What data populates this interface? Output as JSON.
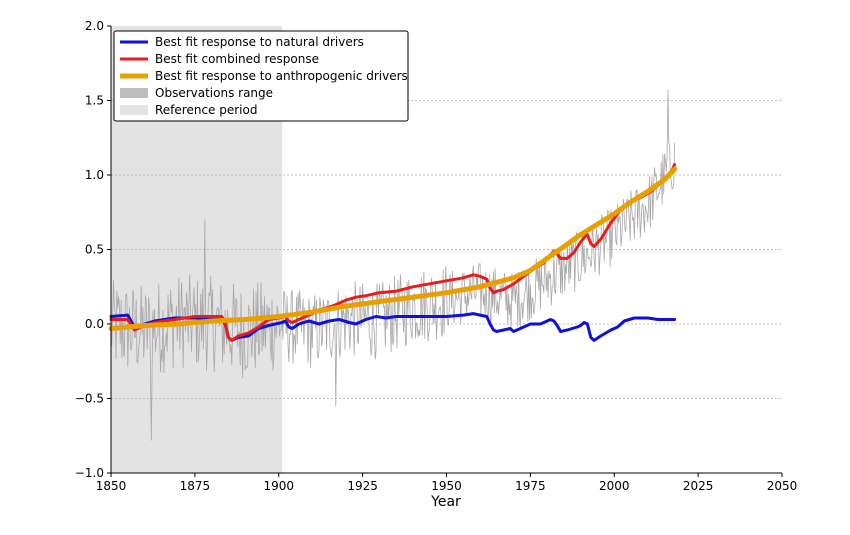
{
  "chart_data": {
    "type": "line",
    "title": "",
    "xlabel": "Year",
    "ylabel": "",
    "xlim": [
      1850,
      2050
    ],
    "ylim": [
      -1.0,
      2.0
    ],
    "x_ticks": [
      "1850",
      "1875",
      "1900",
      "1925",
      "1950",
      "1975",
      "2000",
      "2025",
      "2050"
    ],
    "y_ticks": [
      "2.0",
      "1.5",
      "1.0",
      "0.5",
      "0.0",
      "−0.5",
      "−1.0"
    ],
    "grid": "horizontal dotted",
    "legend_position": "top-left",
    "legend": [
      {
        "label": "Best fit response to natural drivers",
        "color": "#1010d8",
        "kind": "line"
      },
      {
        "label": "Best fit combined response",
        "color": "#e81c1c",
        "kind": "line"
      },
      {
        "label": "Best fit response to anthropogenic drivers",
        "color": "#e8a000",
        "kind": "line"
      },
      {
        "label": "Observations range",
        "color": "#bdbdbd",
        "kind": "patch"
      },
      {
        "label": "Reference period",
        "color": "#e3e3e3",
        "kind": "patch"
      }
    ],
    "reference_period": [
      1850,
      1901
    ],
    "series": [
      {
        "name": "Best fit response to natural drivers",
        "color": "#1010d8",
        "x": [
          1850,
          1855,
          1856,
          1857,
          1858,
          1860,
          1863,
          1866,
          1869,
          1872,
          1875,
          1878,
          1881,
          1883,
          1884,
          1885,
          1886,
          1888,
          1891,
          1894,
          1897,
          1899,
          1901,
          1902,
          1903,
          1904,
          1906,
          1909,
          1912,
          1915,
          1918,
          1921,
          1923,
          1926,
          1929,
          1932,
          1935,
          1940,
          1945,
          1950,
          1955,
          1958,
          1960,
          1962,
          1963,
          1964,
          1965,
          1967,
          1969,
          1970,
          1972,
          1975,
          1978,
          1981,
          1982,
          1983,
          1984,
          1986,
          1989,
          1990,
          1991,
          1992,
          1993,
          1994,
          1996,
          1999,
          2001,
          2003,
          2006,
          2008,
          2010,
          2013,
          2016,
          2018
        ],
        "values": [
          0.05,
          0.06,
          0.02,
          -0.02,
          -0.03,
          0.0,
          0.02,
          0.03,
          0.04,
          0.04,
          0.04,
          0.04,
          0.04,
          0.03,
          0.0,
          -0.09,
          -0.11,
          -0.09,
          -0.08,
          -0.03,
          -0.01,
          0.0,
          0.01,
          0.02,
          -0.02,
          -0.03,
          0.0,
          0.02,
          0.0,
          0.02,
          0.03,
          0.01,
          0.0,
          0.03,
          0.05,
          0.04,
          0.05,
          0.05,
          0.05,
          0.05,
          0.06,
          0.07,
          0.06,
          0.05,
          0.0,
          -0.04,
          -0.05,
          -0.04,
          -0.03,
          -0.05,
          -0.03,
          0.0,
          0.0,
          0.03,
          0.02,
          -0.01,
          -0.05,
          -0.04,
          -0.02,
          -0.01,
          0.01,
          0.0,
          -0.09,
          -0.11,
          -0.08,
          -0.04,
          -0.02,
          0.02,
          0.04,
          0.04,
          0.04,
          0.03,
          0.03,
          0.03
        ]
      },
      {
        "name": "Best fit combined response",
        "color": "#e81c1c",
        "x": [
          1850,
          1855,
          1857,
          1858,
          1860,
          1863,
          1866,
          1869,
          1872,
          1875,
          1878,
          1881,
          1883,
          1884,
          1885,
          1886,
          1888,
          1891,
          1894,
          1897,
          1900,
          1902,
          1903,
          1904,
          1907,
          1910,
          1913,
          1916,
          1920,
          1923,
          1926,
          1930,
          1935,
          1940,
          1945,
          1950,
          1955,
          1958,
          1960,
          1962,
          1963,
          1964,
          1965,
          1967,
          1970,
          1973,
          1976,
          1979,
          1982,
          1983,
          1984,
          1986,
          1988,
          1990,
          1991,
          1992,
          1993,
          1994,
          1996,
          1999,
          2002,
          2005,
          2008,
          2011,
          2014,
          2017,
          2018
        ],
        "values": [
          0.03,
          0.03,
          -0.04,
          -0.03,
          -0.01,
          0.01,
          0.02,
          0.03,
          0.04,
          0.05,
          0.05,
          0.05,
          0.05,
          0.01,
          -0.09,
          -0.11,
          -0.08,
          -0.06,
          -0.02,
          0.03,
          0.04,
          0.05,
          0.02,
          0.01,
          0.04,
          0.07,
          0.1,
          0.12,
          0.16,
          0.18,
          0.19,
          0.21,
          0.22,
          0.25,
          0.27,
          0.29,
          0.31,
          0.33,
          0.32,
          0.3,
          0.24,
          0.21,
          0.22,
          0.23,
          0.27,
          0.32,
          0.37,
          0.41,
          0.49,
          0.47,
          0.44,
          0.44,
          0.48,
          0.55,
          0.58,
          0.6,
          0.54,
          0.52,
          0.57,
          0.68,
          0.77,
          0.82,
          0.85,
          0.89,
          0.95,
          1.02,
          1.07
        ]
      },
      {
        "name": "Best fit response to anthropogenic drivers",
        "color": "#e8a000",
        "x": [
          1850,
          1860,
          1870,
          1880,
          1890,
          1900,
          1910,
          1920,
          1930,
          1940,
          1950,
          1960,
          1965,
          1970,
          1975,
          1980,
          1985,
          1990,
          1995,
          2000,
          2005,
          2010,
          2015,
          2018
        ],
        "values": [
          -0.03,
          -0.01,
          0.0,
          0.02,
          0.03,
          0.05,
          0.08,
          0.12,
          0.15,
          0.18,
          0.21,
          0.25,
          0.28,
          0.31,
          0.36,
          0.44,
          0.52,
          0.6,
          0.67,
          0.74,
          0.82,
          0.89,
          0.97,
          1.04
        ]
      }
    ],
    "observations_range": {
      "name": "Observations range",
      "color": "#a8a8a8",
      "anchor_years": [
        1850,
        1860,
        1870,
        1880,
        1890,
        1900,
        1910,
        1920,
        1930,
        1940,
        1950,
        1960,
        1970,
        1980,
        1990,
        2000,
        2010,
        2018
      ],
      "anchor_values": [
        -0.02,
        -0.05,
        0.02,
        0.0,
        -0.05,
        0.0,
        -0.05,
        0.03,
        0.02,
        0.12,
        0.16,
        0.22,
        0.15,
        0.3,
        0.43,
        0.6,
        0.8,
        1.1
      ],
      "notable_peaks": [
        {
          "year": 1862,
          "value": -0.78
        },
        {
          "year": 1878,
          "value": 0.7
        },
        {
          "year": 1917,
          "value": -0.55
        },
        {
          "year": 2016,
          "value": 1.57
        }
      ]
    }
  }
}
